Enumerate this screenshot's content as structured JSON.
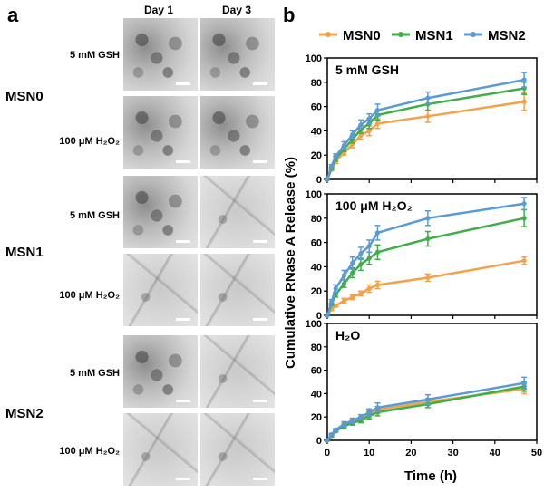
{
  "panel_a": {
    "letter": "a",
    "columns": [
      "Day 1",
      "Day 3"
    ],
    "materials": [
      "MSN0",
      "MSN1",
      "MSN2"
    ],
    "conditions": [
      "5 mM GSH",
      "100 μM H₂O₂"
    ]
  },
  "panel_b": {
    "letter": "b"
  },
  "colors": {
    "MSN0": "#f4a24a",
    "MSN1": "#3fae49",
    "MSN2": "#5b9bd5"
  },
  "chart_data": {
    "type": "line",
    "xlabel": "Time (h)",
    "ylabel": "Cumulative RNase A Release (%)",
    "legend": [
      "MSN0",
      "MSN1",
      "MSN2"
    ],
    "legend_position": "top",
    "x_ticks": [
      "0",
      "10",
      "20",
      "30",
      "40",
      "50"
    ],
    "xlim": [
      0,
      50
    ],
    "y_ticks": [
      "0",
      "20",
      "40",
      "60",
      "80",
      "100"
    ],
    "ylim": [
      0,
      100
    ],
    "panels": [
      {
        "label": "5 mM GSH",
        "x": [
          0,
          1,
          2,
          4,
          6,
          8,
          10,
          12,
          24,
          47
        ],
        "series": [
          {
            "name": "MSN0",
            "values": [
              0,
              8,
              15,
              22,
              29,
              36,
              40,
              46,
              52,
              64
            ],
            "errors": [
              0,
              1,
              2,
              2,
              3,
              3,
              4,
              4,
              5,
              7
            ]
          },
          {
            "name": "MSN1",
            "values": [
              0,
              9,
              17,
              25,
              33,
              41,
              46,
              53,
              62,
              75
            ],
            "errors": [
              0,
              1,
              2,
              2,
              3,
              3,
              4,
              4,
              5,
              5
            ]
          },
          {
            "name": "MSN2",
            "values": [
              0,
              11,
              19,
              28,
              37,
              45,
              50,
              57,
              67,
              82
            ],
            "errors": [
              0,
              1,
              2,
              3,
              3,
              4,
              4,
              5,
              5,
              6
            ]
          }
        ]
      },
      {
        "label": "100 μM H₂O₂",
        "x": [
          0,
          1,
          2,
          4,
          6,
          8,
          10,
          12,
          24,
          47
        ],
        "series": [
          {
            "name": "MSN0",
            "values": [
              0,
              5,
              8,
              12,
              15,
              18,
              22,
              25,
              31,
              45
            ],
            "errors": [
              0,
              1,
              1,
              2,
              2,
              2,
              3,
              3,
              3,
              3
            ]
          },
          {
            "name": "MSN1",
            "values": [
              0,
              9,
              17,
              26,
              35,
              42,
              47,
              52,
              63,
              80
            ],
            "errors": [
              0,
              1,
              2,
              3,
              4,
              5,
              5,
              6,
              6,
              7
            ]
          },
          {
            "name": "MSN2",
            "values": [
              0,
              11,
              22,
              33,
              43,
              51,
              57,
              68,
              80,
              92
            ],
            "errors": [
              0,
              2,
              3,
              4,
              5,
              5,
              5,
              6,
              6,
              5
            ]
          }
        ]
      },
      {
        "label": "H₂O",
        "x": [
          0,
          1,
          2,
          4,
          6,
          8,
          10,
          12,
          24,
          47
        ],
        "series": [
          {
            "name": "MSN0",
            "values": [
              0,
              4,
              8,
              13,
              16,
              18,
              22,
              26,
              33,
              44
            ],
            "errors": [
              0,
              1,
              1,
              2,
              2,
              2,
              3,
              3,
              3,
              4
            ]
          },
          {
            "name": "MSN1",
            "values": [
              0,
              4,
              8,
              12,
              15,
              17,
              21,
              24,
              31,
              46
            ],
            "errors": [
              0,
              1,
              1,
              2,
              2,
              2,
              3,
              3,
              3,
              4
            ]
          },
          {
            "name": "MSN2",
            "values": [
              0,
              5,
              9,
              14,
              17,
              20,
              24,
              28,
              35,
              49
            ],
            "errors": [
              0,
              1,
              1,
              2,
              2,
              2,
              3,
              4,
              4,
              5
            ]
          }
        ]
      }
    ]
  }
}
